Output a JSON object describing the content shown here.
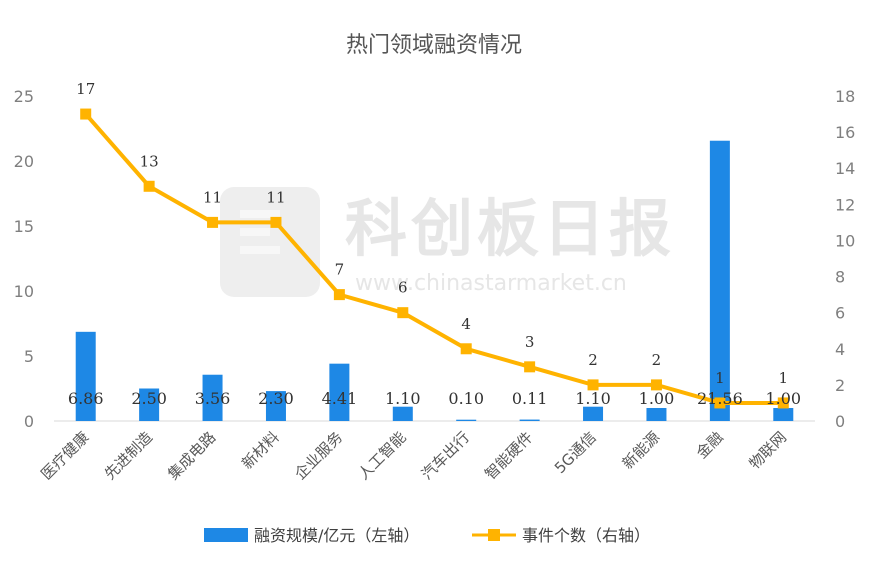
{
  "chart_data": {
    "type": "bar",
    "title": "热门领域融资情况",
    "categories": [
      "医疗健康",
      "先进制造",
      "集成电路",
      "新材料",
      "企业服务",
      "人工智能",
      "汽车出行",
      "智能硬件",
      "5G通信",
      "新能源",
      "金融",
      "物联网"
    ],
    "series": [
      {
        "name": "融资规模/亿元（左轴）",
        "type": "bar",
        "axis": "left",
        "color": "#1e88e5",
        "values": [
          6.86,
          2.5,
          3.56,
          2.3,
          4.41,
          1.1,
          0.1,
          0.11,
          1.1,
          1.0,
          21.56,
          1.0
        ],
        "labels": [
          "6.86",
          "2.50",
          "3.56",
          "2.30",
          "4.41",
          "1.10",
          "0.10",
          "0.11",
          "1.10",
          "1.00",
          "21.56",
          "1.00"
        ]
      },
      {
        "name": "事件个数（右轴）",
        "type": "line",
        "axis": "right",
        "color": "#ffb300",
        "values": [
          17,
          13,
          11,
          11,
          7,
          6,
          4,
          3,
          2,
          2,
          1,
          1
        ],
        "labels": [
          "17",
          "13",
          "11",
          "11",
          "7",
          "6",
          "4",
          "3",
          "2",
          "2",
          "1",
          "1"
        ]
      }
    ],
    "y_left": {
      "ylim": [
        0,
        25
      ],
      "ticks": [
        "0",
        "5",
        "10",
        "15",
        "20",
        "25"
      ]
    },
    "y_right": {
      "ylim": [
        0,
        18
      ],
      "ticks": [
        "0",
        "2",
        "4",
        "6",
        "8",
        "10",
        "12",
        "14",
        "16",
        "18"
      ]
    },
    "grid": false,
    "legend": "bottom"
  },
  "watermark": {
    "text": "科创板日报",
    "url": "www.chinastarmarket.cn"
  }
}
